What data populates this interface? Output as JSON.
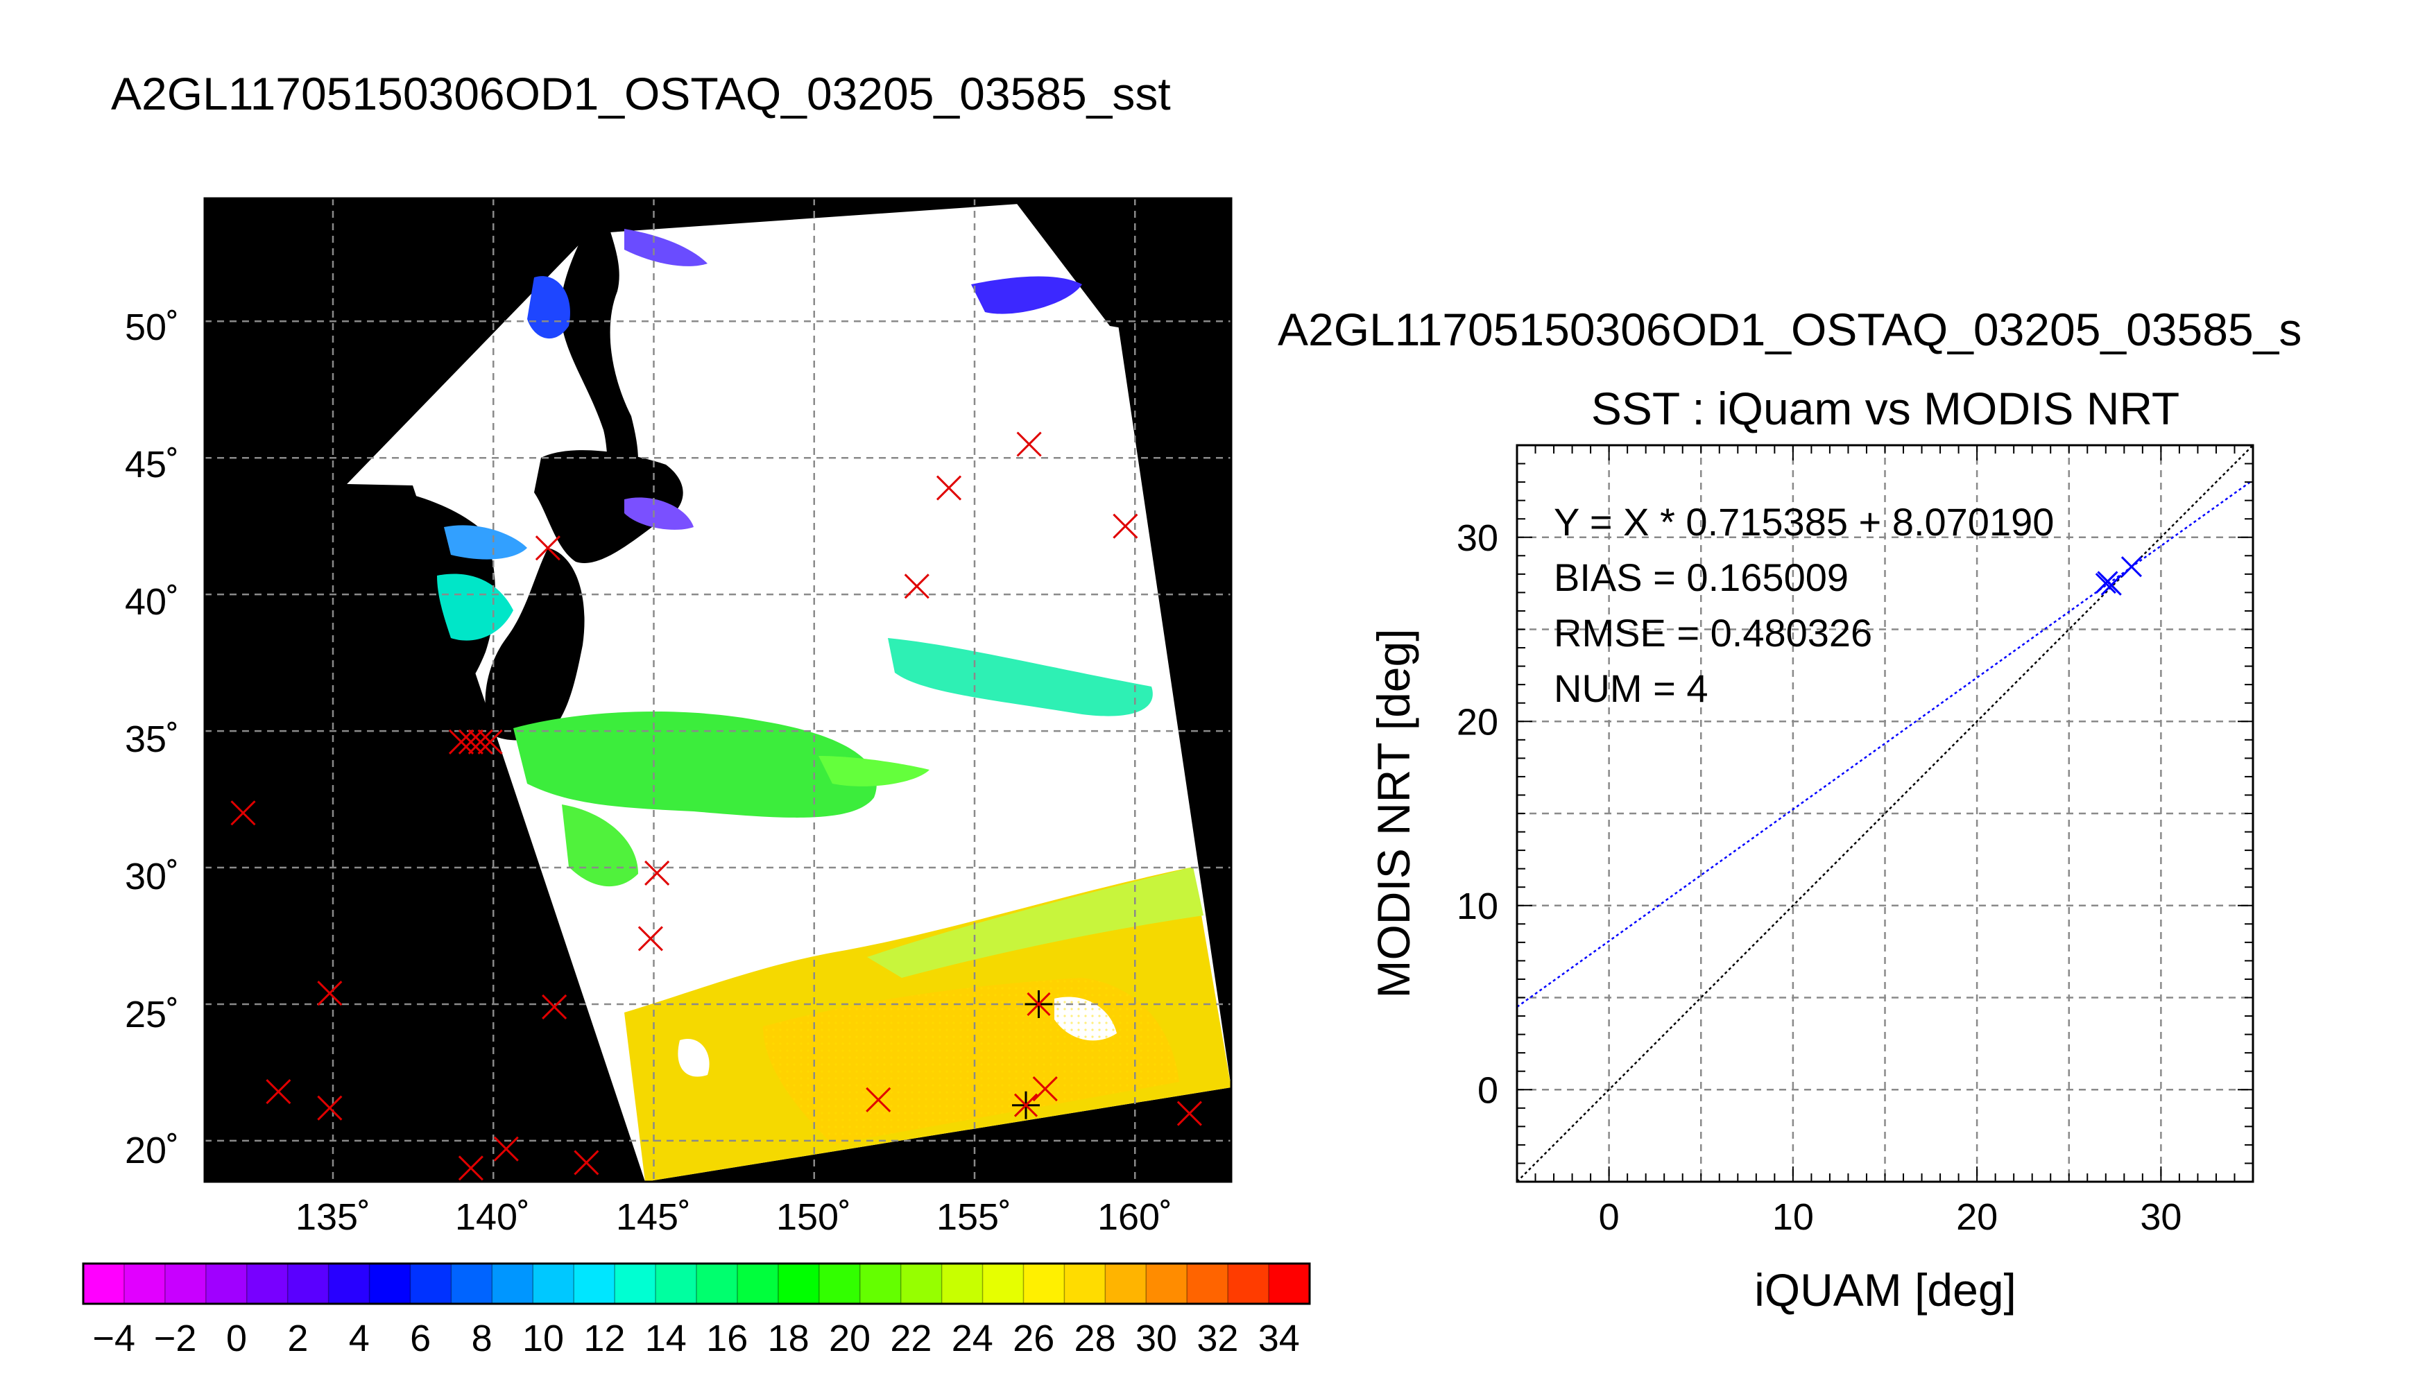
{
  "map_panel": {
    "title": "A2GL11705150306OD1_OSTAQ_03205_03585_sst",
    "lon_labels": [
      "135˚",
      "140˚",
      "145˚",
      "150˚",
      "155˚",
      "160˚"
    ],
    "lat_labels": [
      "50˚",
      "45˚",
      "40˚",
      "35˚",
      "30˚",
      "25˚",
      "20˚"
    ],
    "lon_range": [
      131.0,
      163.0
    ],
    "lat_range": [
      18.5,
      54.5
    ]
  },
  "colorbar": {
    "tick_labels": [
      "−4",
      "−2",
      "0",
      "2",
      "4",
      "6",
      "8",
      "10",
      "12",
      "14",
      "16",
      "18",
      "20",
      "22",
      "24",
      "26",
      "28",
      "30",
      "32",
      "34"
    ],
    "range": [
      -5,
      35
    ],
    "colors": [
      "#ff00ff",
      "#e100ff",
      "#c800ff",
      "#a000ff",
      "#7800ff",
      "#5a00ff",
      "#2800ff",
      "#0000ff",
      "#0032ff",
      "#0064ff",
      "#0096ff",
      "#00c8ff",
      "#00e6ff",
      "#00ffd2",
      "#00ffa0",
      "#00ff6e",
      "#00ff3c",
      "#00ff00",
      "#32ff00",
      "#64ff00",
      "#96ff00",
      "#c8ff00",
      "#e6ff00",
      "#fff000",
      "#ffdc00",
      "#ffb400",
      "#ff8c00",
      "#ff6400",
      "#ff3c00",
      "#ff0000"
    ]
  },
  "chart_data": {
    "type": "scatter",
    "suptitle": "A2GL11705150306OD1_OSTAQ_03205_03585_s",
    "title": "SST : iQuam vs MODIS NRT",
    "xlabel": "iQUAM [deg]",
    "ylabel": "MODIS NRT [deg]",
    "xlim": [
      -5,
      35
    ],
    "ylim": [
      -5,
      35
    ],
    "xticks": [
      0,
      10,
      20,
      30
    ],
    "yticks": [
      0,
      10,
      20,
      30
    ],
    "grid": true,
    "annotations": [
      "Y = X * 0.715385 + 8.070190",
      "BIAS = 0.165009",
      "RMSE = 0.480326",
      "NUM = 4"
    ],
    "fit_line": {
      "slope": 0.715385,
      "intercept": 8.07019,
      "color": "#0000ff"
    },
    "identity_line": {
      "color": "#000000"
    },
    "points": {
      "x": [
        27.0,
        27.3,
        27.1,
        28.4
      ],
      "y": [
        27.5,
        27.4,
        27.6,
        28.4
      ],
      "color": "#0000ff"
    }
  },
  "map_matchups": {
    "red_x": [
      [
        132.2,
        32.0
      ],
      [
        133.3,
        21.8
      ],
      [
        134.9,
        25.4
      ],
      [
        134.9,
        21.2
      ],
      [
        139.0,
        34.6
      ],
      [
        139.3,
        34.6
      ],
      [
        139.6,
        34.6
      ],
      [
        139.9,
        34.6
      ],
      [
        139.3,
        19.0
      ],
      [
        140.4,
        19.7
      ],
      [
        141.7,
        41.7
      ],
      [
        141.9,
        24.9
      ],
      [
        142.9,
        19.2
      ],
      [
        144.9,
        27.4
      ],
      [
        145.1,
        29.8
      ],
      [
        152.0,
        21.5
      ],
      [
        153.2,
        40.3
      ],
      [
        154.2,
        43.9
      ],
      [
        156.7,
        45.5
      ],
      [
        157.2,
        21.9
      ],
      [
        159.7,
        42.5
      ],
      [
        161.7,
        21.0
      ]
    ],
    "asterisks": [
      [
        156.6,
        21.3
      ],
      [
        157.0,
        25.0
      ]
    ]
  }
}
